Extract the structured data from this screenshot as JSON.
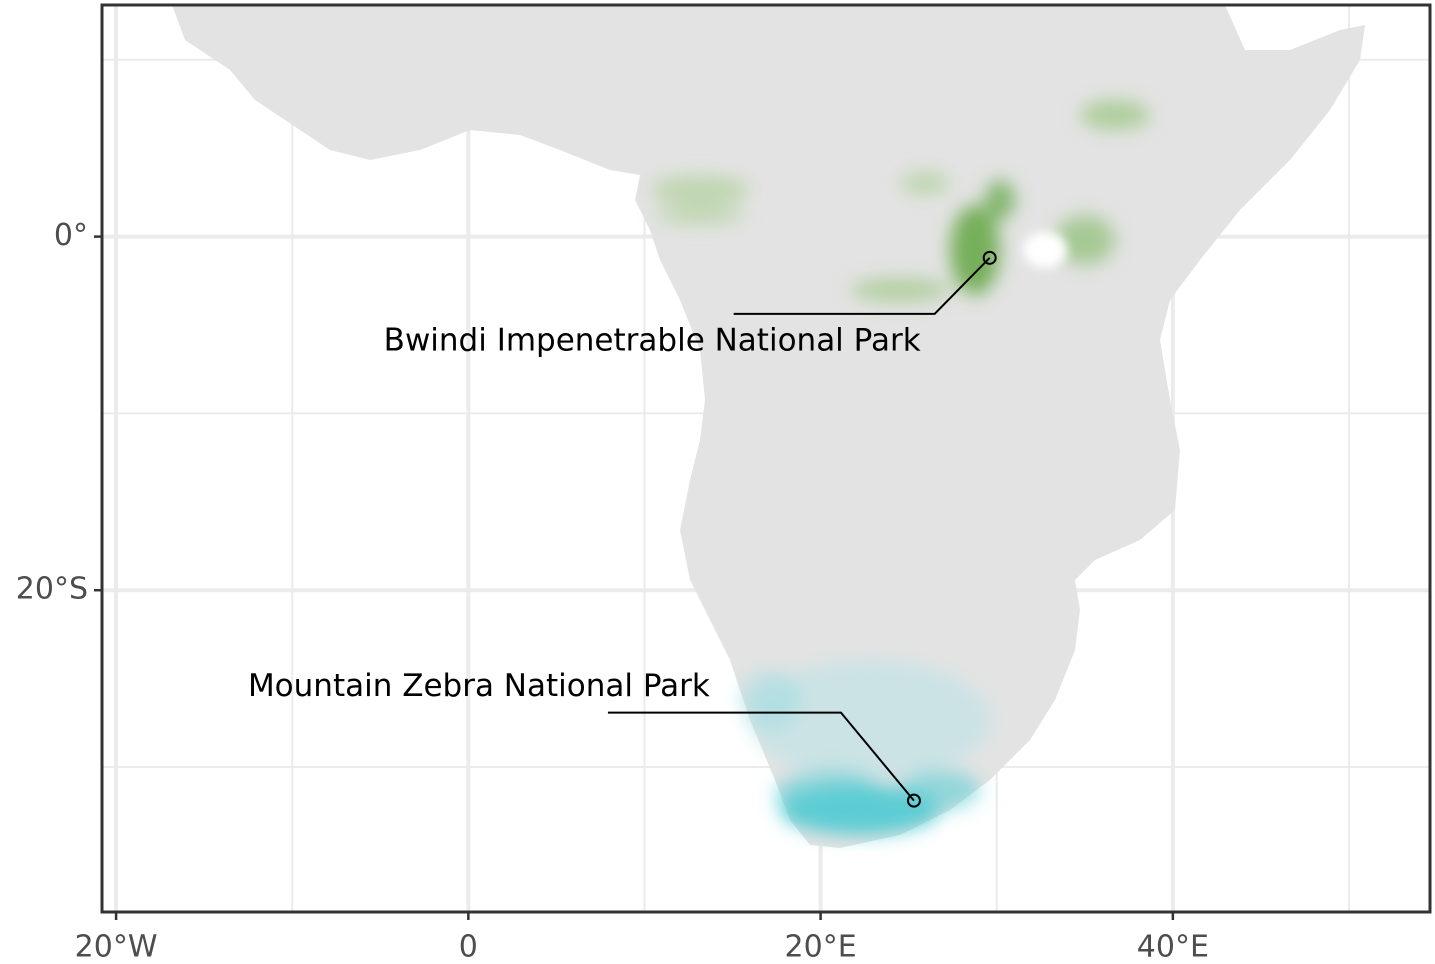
{
  "chart_data": {
    "type": "map",
    "xlim": [
      -20.8,
      54.6
    ],
    "ylim": [
      -38.2,
      13.1
    ],
    "xticks": [
      {
        "value": -20,
        "label": "20°W"
      },
      0,
      {
        "value": 20,
        "label": "20°E"
      },
      {
        "value": 40,
        "label": "40°E"
      }
    ],
    "yticks": [
      {
        "value": 0,
        "label": "0°"
      },
      {
        "value": -20,
        "label": "20°S"
      }
    ],
    "xminor": [
      -10,
      10,
      30,
      50
    ],
    "yminor": [
      10,
      -10,
      -30
    ],
    "grid": true,
    "points": [
      {
        "name": "Bwindi Impenetrable National Park",
        "x": 29.6,
        "y": -1.2
      },
      {
        "name": "Mountain Zebra National Park",
        "x": 25.3,
        "y": -31.9
      }
    ]
  }
}
